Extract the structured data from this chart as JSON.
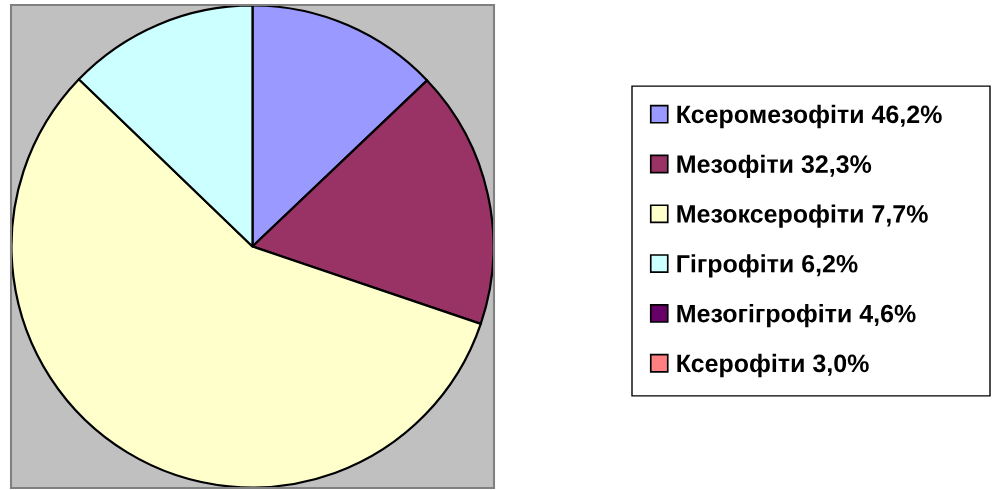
{
  "chart_data": {
    "type": "pie",
    "categories": [
      "Ксеромезофіти 46,2%",
      "Мезофіти 32,3%",
      "Мезоксерофіти 7,7%",
      "Гігрофіти 6,2%",
      "Мезогігрофіти 4,6%",
      "Ксерофіти 3,0%"
    ],
    "values": [
      12.9,
      17.3,
      57.0,
      12.8,
      0,
      0
    ],
    "colors": [
      "#9999ff",
      "#993366",
      "#ffffcc",
      "#ccffff",
      "#660066",
      "#ff8080"
    ],
    "legend": "right"
  }
}
